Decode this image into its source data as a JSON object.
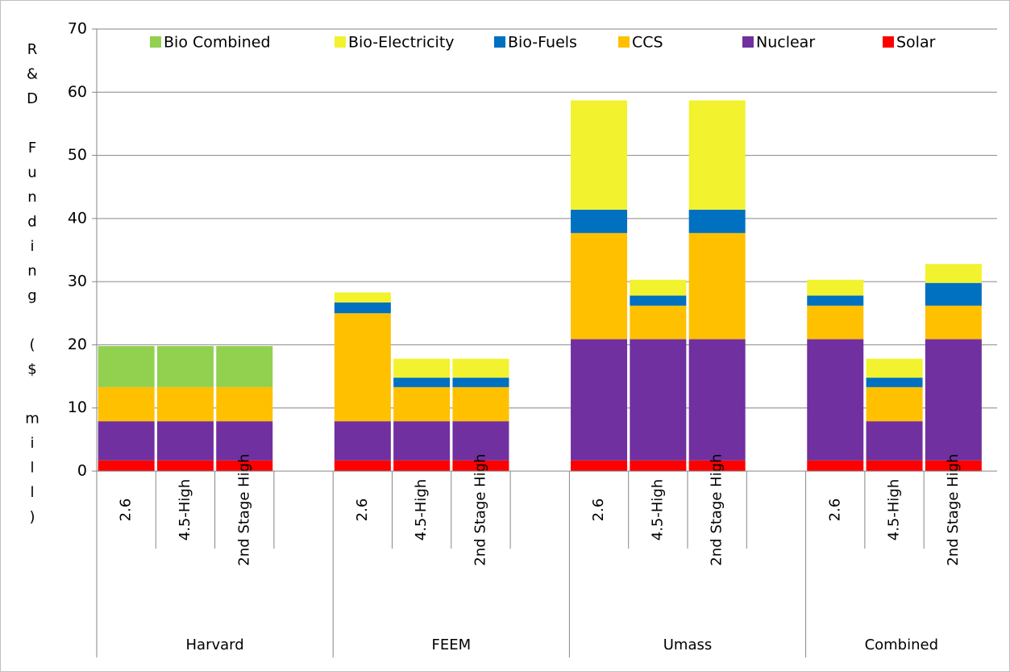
{
  "chart_data": {
    "type": "stacked_bar",
    "y_label": "R&D Funding ($ mill)",
    "groups": [
      "Harvard",
      "FEEM",
      "Umass",
      "Combined"
    ],
    "categories": [
      "2.6",
      "4.5-High",
      "2nd Stage High",
      null,
      "2.6",
      "4.5-High",
      "2nd Stage High",
      null,
      "2.6",
      "4.5-High",
      "2nd Stage High",
      null,
      "2.6",
      "4.5-High",
      "2nd Stage High"
    ],
    "series": [
      {
        "name": "Solar",
        "color": "#ff0000",
        "values": [
          1.7,
          1.7,
          1.7,
          null,
          1.7,
          1.7,
          1.7,
          null,
          1.7,
          1.7,
          1.7,
          null,
          1.7,
          1.7,
          1.7
        ]
      },
      {
        "name": "Nuclear",
        "color": "#7030a0",
        "values": [
          6.2,
          6.2,
          6.2,
          null,
          6.2,
          6.2,
          6.2,
          null,
          19.2,
          19.2,
          19.2,
          null,
          19.2,
          6.2,
          19.2
        ]
      },
      {
        "name": "CCS",
        "color": "#ffc000",
        "values": [
          5.4,
          5.4,
          5.4,
          null,
          17.1,
          5.4,
          5.4,
          null,
          16.8,
          5.3,
          16.8,
          null,
          5.3,
          5.4,
          5.3
        ]
      },
      {
        "name": "Bio-Fuels",
        "color": "#0070c0",
        "values": [
          0,
          0,
          0,
          null,
          1.7,
          1.5,
          1.5,
          null,
          3.7,
          1.6,
          3.7,
          null,
          1.6,
          1.5,
          3.6
        ]
      },
      {
        "name": "Bio-Electricity",
        "color": "#f2f22e",
        "values": [
          0,
          0,
          0,
          null,
          1.6,
          3.0,
          3.0,
          null,
          17.3,
          2.5,
          17.3,
          null,
          2.5,
          3.0,
          3.0
        ]
      },
      {
        "name": "Bio Combined",
        "color": "#92d050",
        "values": [
          6.5,
          6.5,
          6.5,
          null,
          0,
          0,
          0,
          null,
          0,
          0,
          0,
          null,
          0,
          0,
          0
        ]
      }
    ],
    "ylim": [
      0,
      70
    ],
    "yticks": [
      0,
      10,
      20,
      30,
      40,
      50,
      60,
      70
    ],
    "grid": true,
    "legend": "top"
  }
}
